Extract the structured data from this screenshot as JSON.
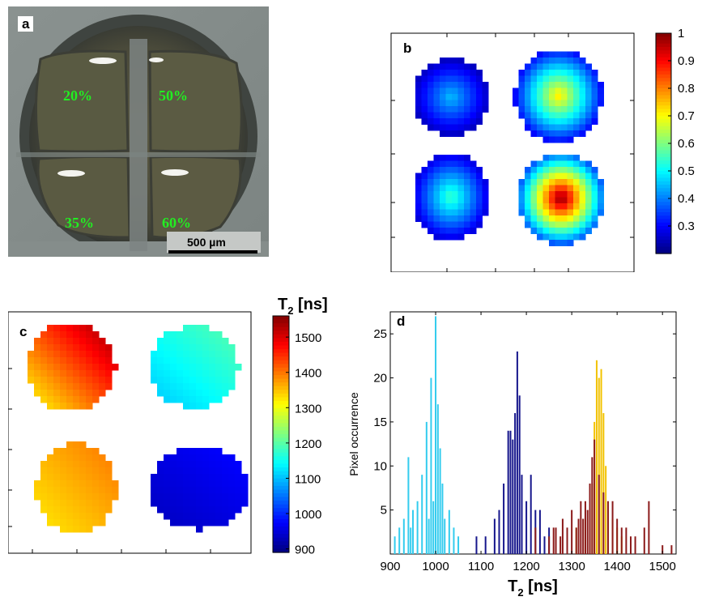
{
  "panel_labels": {
    "a": "a",
    "b": "b",
    "c": "c",
    "d": "d"
  },
  "photo": {
    "quadrant_labels": [
      "20%",
      "50%",
      "35%",
      "60%"
    ],
    "scale_bar_label": "500 µm"
  },
  "colors": {
    "panel_d_series": [
      "#33ccee",
      "#16168c",
      "#f2c200",
      "#8b1a1a"
    ],
    "photo_label_green": "#22ee22"
  },
  "chart_data": [
    {
      "type": "heatmap",
      "panel": "b",
      "colormap": "jet",
      "colorbar_range": [
        0.2,
        1
      ],
      "colorbar_ticks": [
        "1",
        "0.9",
        "0.8",
        "0.7",
        "0.6",
        "0.5",
        "0.4",
        "0.3"
      ],
      "regions": [
        {
          "position": "top-left",
          "peak": 0.45
        },
        {
          "position": "top-right",
          "peak": 0.72
        },
        {
          "position": "bottom-left",
          "peak": 0.55
        },
        {
          "position": "bottom-right",
          "peak": 1.0
        }
      ]
    },
    {
      "type": "heatmap",
      "panel": "c",
      "colormap": "jet",
      "colorbar_title": "T",
      "colorbar_title_sub": "2",
      "colorbar_title_unit": " [ns]",
      "colorbar_range": [
        890,
        1560
      ],
      "colorbar_ticks": [
        "1500",
        "1400",
        "1300",
        "1200",
        "1100",
        "1000",
        "900"
      ],
      "regions": [
        {
          "position": "top-left",
          "range": [
            1300,
            1550
          ]
        },
        {
          "position": "top-right",
          "range": [
            1100,
            1200
          ]
        },
        {
          "position": "bottom-left",
          "range": [
            1320,
            1400
          ]
        },
        {
          "position": "bottom-right",
          "range": [
            930,
            980
          ]
        }
      ]
    },
    {
      "type": "bar",
      "panel": "d",
      "xlabel": "T",
      "xlabel_sub": "2",
      "xlabel_unit": " [ns]",
      "ylabel": "Pixel occurrence",
      "xlim": [
        900,
        1530
      ],
      "ylim": [
        0,
        27.5
      ],
      "xticks": [
        "900",
        "1000",
        "1100",
        "1200",
        "1300",
        "1400",
        "1500"
      ],
      "yticks": [
        "5",
        "10",
        "15",
        "20",
        "25"
      ],
      "series": [
        {
          "x": [
            910,
            920,
            930,
            940,
            945,
            950,
            960,
            970,
            980,
            985,
            990,
            995,
            1000,
            1005,
            1010,
            1015,
            1020,
            1030,
            1040,
            1050
          ],
          "values": [
            2,
            3,
            4,
            11,
            3,
            5,
            6,
            9,
            15,
            4,
            20,
            6,
            27,
            17,
            12,
            8,
            4,
            5,
            3,
            2
          ]
        },
        {
          "x": [
            1090,
            1110,
            1130,
            1140,
            1150,
            1160,
            1165,
            1170,
            1175,
            1180,
            1185,
            1190,
            1200,
            1210,
            1220,
            1230,
            1240,
            1250
          ],
          "values": [
            2,
            2,
            4,
            5,
            8,
            14,
            14,
            13,
            16,
            23,
            18,
            9,
            6,
            9,
            5,
            5,
            2,
            3
          ]
        },
        {
          "x": [
            1310,
            1330,
            1340,
            1345,
            1350,
            1355,
            1360,
            1365,
            1370,
            1375,
            1380,
            1390,
            1400,
            1410
          ],
          "values": [
            3,
            4,
            5,
            8,
            15,
            22,
            20,
            21,
            16,
            10,
            5,
            4,
            3,
            2
          ]
        },
        {
          "x": [
            1220,
            1250,
            1260,
            1265,
            1275,
            1280,
            1290,
            1300,
            1310,
            1315,
            1320,
            1325,
            1330,
            1335,
            1340,
            1345,
            1350,
            1360,
            1370,
            1380,
            1390,
            1400,
            1410,
            1420,
            1430,
            1440,
            1460,
            1470,
            1500,
            1520
          ],
          "values": [
            3,
            2,
            3,
            3,
            2,
            4,
            3,
            5,
            3,
            4,
            6,
            4,
            6,
            5,
            8,
            11,
            13,
            9,
            7,
            6,
            6,
            4,
            3,
            3,
            2,
            2,
            3,
            6,
            1,
            1
          ]
        }
      ]
    }
  ]
}
